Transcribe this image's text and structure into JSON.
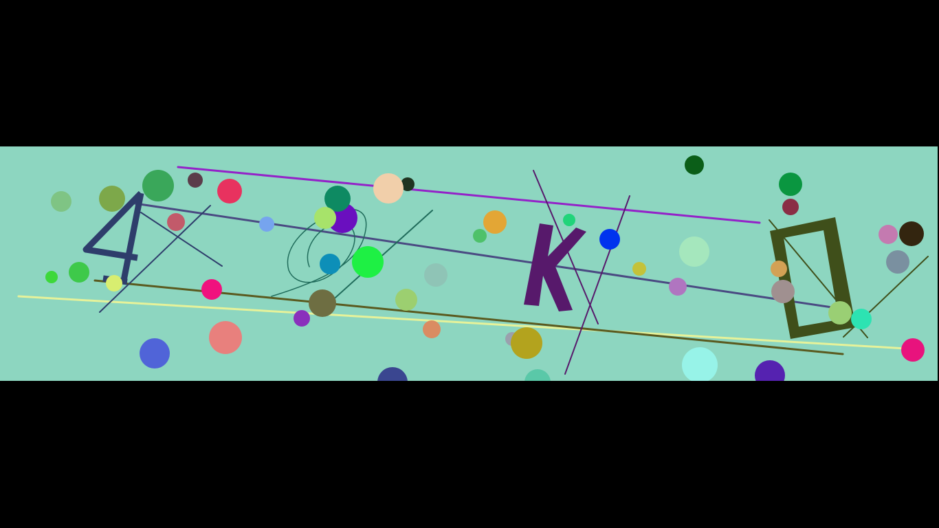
{
  "captcha": {
    "background": "#8dd6c0",
    "characters": [
      {
        "char": "4",
        "color": "#2e3d6b"
      },
      {
        "char": "U",
        "color": "#1f6b5a"
      },
      {
        "char": "K",
        "color": "#57196b"
      },
      {
        "char": "D",
        "color": "#3f4f1a"
      }
    ],
    "dot_colors": [
      "#3aa75a",
      "#7da84a",
      "#e8325f",
      "#5b3c4a",
      "#7fc484",
      "#c25a6a",
      "#76a4ee",
      "#0e8a62",
      "#6a0fbf",
      "#a7e36a",
      "#f1cfaa",
      "#1f3320",
      "#e3a635",
      "#4ec16a",
      "#20d47a",
      "#0033ee",
      "#0b5e18",
      "#0a9640",
      "#8a2e45",
      "#c47ab0",
      "#33250f",
      "#7a90a0",
      "#d3a155",
      "#a09090",
      "#a5e7bd",
      "#b075c0",
      "#c4c23a",
      "#3ec94a",
      "#3dd83a",
      "#f0117e",
      "#d8ee70",
      "#0d8fb8",
      "#1ef044",
      "#8fc4b6",
      "#9ccf70",
      "#6e6e42",
      "#8a30bc",
      "#da8c62",
      "#5064d8",
      "#e8807d",
      "#b3a31e",
      "#9aa0ad",
      "#3a4690",
      "#5ac8a8",
      "#97f3e8",
      "#5522b0",
      "#e8137d",
      "#9acf74",
      "#2de3b2"
    ]
  }
}
